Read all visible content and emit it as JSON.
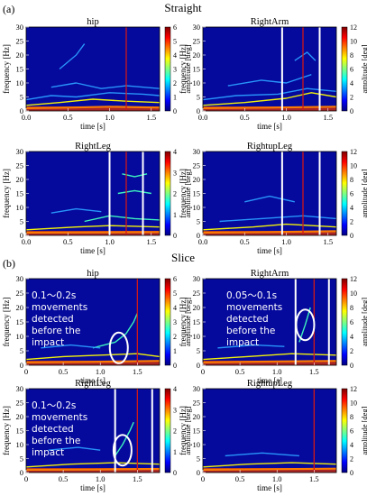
{
  "figure": {
    "part_a_label": "(a)",
    "part_a_title": "Straight",
    "part_b_label": "(b)",
    "part_b_title": "Slice"
  },
  "colors": {
    "background_field": "#05099c",
    "marker_line_red": "#d01818",
    "marker_line_white": "#ffffff",
    "colormap": [
      "#00007f",
      "#0000ff",
      "#0080ff",
      "#00ffff",
      "#80ff80",
      "#ffff00",
      "#ff8000",
      "#ff0000",
      "#7f0000"
    ]
  },
  "chart_data": [
    {
      "id": "a-hip",
      "type": "heatmap",
      "title": "hip",
      "xlabel": "time [s]",
      "ylabel": "frequency [Hz]",
      "colorbar_label": "amplitude [deg]",
      "xlim": [
        0,
        1.6
      ],
      "ylim": [
        0,
        30
      ],
      "clim": [
        0,
        6
      ],
      "x_ticks": [
        "0.0",
        "0.5",
        "1.0",
        "1.5"
      ],
      "y_ticks": [
        "0",
        "5",
        "10",
        "15",
        "20",
        "25",
        "30"
      ],
      "c_ticks": [
        "0",
        "1",
        "2",
        "3",
        "4",
        "5",
        "6"
      ],
      "red_lines_x": [
        1.2
      ],
      "white_lines_x": [],
      "annotation": null,
      "ridges": [
        {
          "a": 0.7,
          "pts": [
            [
              0,
              2.0
            ],
            [
              0.4,
              3.0
            ],
            [
              0.8,
              4.2
            ],
            [
              1.2,
              3.5
            ],
            [
              1.6,
              3.0
            ]
          ]
        },
        {
          "a": 0.45,
          "pts": [
            [
              0,
              4.0
            ],
            [
              0.3,
              5.5
            ],
            [
              0.6,
              5.0
            ],
            [
              1.0,
              6.5
            ],
            [
              1.4,
              6.0
            ],
            [
              1.6,
              5.5
            ]
          ]
        },
        {
          "a": 0.3,
          "pts": [
            [
              0.3,
              8.5
            ],
            [
              0.6,
              10.0
            ],
            [
              0.9,
              8.0
            ],
            [
              1.2,
              9.0
            ],
            [
              1.6,
              8.0
            ]
          ]
        },
        {
          "a": 0.25,
          "pts": [
            [
              0.4,
              15.0
            ],
            [
              0.6,
              20.0
            ],
            [
              0.7,
              24.0
            ]
          ]
        },
        {
          "a": 0.9,
          "pts": [
            [
              0,
              1.0
            ],
            [
              0.5,
              1.2
            ],
            [
              1.0,
              1.5
            ],
            [
              1.6,
              1.2
            ]
          ]
        }
      ]
    },
    {
      "id": "a-rightarm",
      "type": "heatmap",
      "title": "RightArm",
      "xlabel": "time [s]",
      "ylabel": "frequency [Hz]",
      "colorbar_label": "amplitude [deg]",
      "xlim": [
        0,
        1.6
      ],
      "ylim": [
        0,
        30
      ],
      "clim": [
        0,
        12
      ],
      "x_ticks": [
        "0.0",
        "0.5",
        "1.0",
        "1.5"
      ],
      "y_ticks": [
        "0",
        "5",
        "10",
        "15",
        "20",
        "25",
        "30"
      ],
      "c_ticks": [
        "0",
        "2",
        "4",
        "6",
        "8",
        "10",
        "12"
      ],
      "red_lines_x": [
        1.2
      ],
      "white_lines_x": [
        0.95,
        1.4
      ],
      "annotation": null,
      "ridges": [
        {
          "a": 0.75,
          "pts": [
            [
              0,
              2.0
            ],
            [
              0.5,
              3.0
            ],
            [
              1.0,
              4.5
            ],
            [
              1.3,
              6.5
            ],
            [
              1.6,
              5.0
            ]
          ]
        },
        {
          "a": 0.45,
          "pts": [
            [
              0,
              4.0
            ],
            [
              0.4,
              5.5
            ],
            [
              0.9,
              6.0
            ],
            [
              1.25,
              8.0
            ],
            [
              1.6,
              7.0
            ]
          ]
        },
        {
          "a": 0.3,
          "pts": [
            [
              0.3,
              9.0
            ],
            [
              0.7,
              11.0
            ],
            [
              1.0,
              10.0
            ],
            [
              1.3,
              13.0
            ]
          ]
        },
        {
          "a": 0.35,
          "pts": [
            [
              1.1,
              18.0
            ],
            [
              1.25,
              21.0
            ],
            [
              1.35,
              18.0
            ]
          ]
        },
        {
          "a": 0.9,
          "pts": [
            [
              0,
              1.0
            ],
            [
              0.8,
              1.2
            ],
            [
              1.6,
              1.5
            ]
          ]
        }
      ]
    },
    {
      "id": "a-rightleg",
      "type": "heatmap",
      "title": "RightLeg",
      "xlabel": "time [s]",
      "ylabel": "frequency [Hz]",
      "colorbar_label": "amplitude [deg]",
      "xlim": [
        0,
        1.6
      ],
      "ylim": [
        0,
        30
      ],
      "clim": [
        0,
        4
      ],
      "x_ticks": [
        "0.0",
        "0.5",
        "1.0",
        "1.5"
      ],
      "y_ticks": [
        "0",
        "5",
        "10",
        "15",
        "20",
        "25",
        "30"
      ],
      "c_ticks": [
        "0",
        "1",
        "2",
        "3",
        "4"
      ],
      "red_lines_x": [
        1.2
      ],
      "white_lines_x": [
        1.0,
        1.4
      ],
      "annotation": null,
      "ridges": [
        {
          "a": 0.7,
          "pts": [
            [
              0,
              2.0
            ],
            [
              0.6,
              3.0
            ],
            [
              1.0,
              3.5
            ],
            [
              1.6,
              3.0
            ]
          ]
        },
        {
          "a": 0.5,
          "pts": [
            [
              0.7,
              5.0
            ],
            [
              1.0,
              7.0
            ],
            [
              1.3,
              6.0
            ],
            [
              1.6,
              5.5
            ]
          ]
        },
        {
          "a": 0.55,
          "pts": [
            [
              1.1,
              15.0
            ],
            [
              1.3,
              16.0
            ],
            [
              1.5,
              15.0
            ]
          ]
        },
        {
          "a": 0.5,
          "pts": [
            [
              1.15,
              22.0
            ],
            [
              1.3,
              21.0
            ],
            [
              1.45,
              22.0
            ]
          ]
        },
        {
          "a": 0.3,
          "pts": [
            [
              0.3,
              8.0
            ],
            [
              0.6,
              9.5
            ],
            [
              0.9,
              8.5
            ]
          ]
        },
        {
          "a": 0.95,
          "pts": [
            [
              0,
              1.0
            ],
            [
              0.8,
              1.1
            ],
            [
              1.6,
              1.2
            ]
          ]
        }
      ]
    },
    {
      "id": "a-rightupleg",
      "type": "heatmap",
      "title": "RightupLeg",
      "xlabel": "time [s]",
      "ylabel": "frequency [Hz]",
      "colorbar_label": "amplitude [deg]",
      "xlim": [
        0,
        1.6
      ],
      "ylim": [
        0,
        30
      ],
      "clim": [
        0,
        12
      ],
      "x_ticks": [
        "0.0",
        "0.5",
        "1.0",
        "1.5"
      ],
      "y_ticks": [
        "0",
        "5",
        "10",
        "15",
        "20",
        "25",
        "30"
      ],
      "c_ticks": [
        "0",
        "2",
        "4",
        "6",
        "8",
        "10",
        "12"
      ],
      "red_lines_x": [
        1.2
      ],
      "white_lines_x": [
        0.95,
        1.4
      ],
      "annotation": null,
      "ridges": [
        {
          "a": 0.7,
          "pts": [
            [
              0,
              2.0
            ],
            [
              0.6,
              3.0
            ],
            [
              1.0,
              4.0
            ],
            [
              1.6,
              3.0
            ]
          ]
        },
        {
          "a": 0.45,
          "pts": [
            [
              0.2,
              5.0
            ],
            [
              0.7,
              6.0
            ],
            [
              1.2,
              7.0
            ],
            [
              1.6,
              6.0
            ]
          ]
        },
        {
          "a": 0.3,
          "pts": [
            [
              0.5,
              12.0
            ],
            [
              0.8,
              14.0
            ],
            [
              1.1,
              12.0
            ]
          ]
        },
        {
          "a": 0.9,
          "pts": [
            [
              0,
              1.0
            ],
            [
              0.8,
              1.2
            ],
            [
              1.6,
              1.5
            ]
          ]
        }
      ]
    },
    {
      "id": "b-hip",
      "type": "heatmap",
      "title": "hip",
      "xlabel": "time [s]",
      "ylabel": "frequency [Hz]",
      "colorbar_label": "amplitude [deg]",
      "xlim": [
        0,
        1.8
      ],
      "ylim": [
        0,
        30
      ],
      "clim": [
        0,
        6
      ],
      "x_ticks": [
        "0",
        "0.5",
        "1.0",
        "1.5"
      ],
      "y_ticks": [
        "0",
        "5",
        "10",
        "15",
        "20",
        "25",
        "30"
      ],
      "c_ticks": [
        "0",
        "1",
        "2",
        "3",
        "4",
        "5",
        "6"
      ],
      "red_lines_x": [
        1.5
      ],
      "white_lines_x": [],
      "annotation": {
        "text": [
          "0.1～0.2s",
          "movements",
          "detected",
          "before the",
          "impact"
        ],
        "ellipse_center": [
          1.25,
          6.0
        ]
      },
      "ridges": [
        {
          "a": 0.75,
          "pts": [
            [
              0,
              2.0
            ],
            [
              0.5,
              3.0
            ],
            [
              1.0,
              3.5
            ],
            [
              1.5,
              4.0
            ],
            [
              1.8,
              3.0
            ]
          ]
        },
        {
          "a": 0.5,
          "pts": [
            [
              0.9,
              6.0
            ],
            [
              1.2,
              8.0
            ],
            [
              1.35,
              11.0
            ],
            [
              1.45,
              15.0
            ],
            [
              1.5,
              18.0
            ]
          ]
        },
        {
          "a": 0.9,
          "pts": [
            [
              0,
              1.0
            ],
            [
              0.9,
              1.2
            ],
            [
              1.8,
              1.5
            ]
          ]
        },
        {
          "a": 0.3,
          "pts": [
            [
              0.2,
              6.0
            ],
            [
              0.6,
              7.0
            ],
            [
              1.0,
              6.0
            ]
          ]
        }
      ]
    },
    {
      "id": "b-rightarm",
      "type": "heatmap",
      "title": "RightArm",
      "xlabel": "time [s]",
      "ylabel": "frequency [Hz]",
      "colorbar_label": "amplitude [deg]",
      "xlim": [
        0,
        1.8
      ],
      "ylim": [
        0,
        30
      ],
      "clim": [
        0,
        12
      ],
      "x_ticks": [
        "0",
        "0.5",
        "1.0",
        "1.5"
      ],
      "y_ticks": [
        "0",
        "5",
        "10",
        "15",
        "20",
        "25",
        "30"
      ],
      "c_ticks": [
        "0",
        "2",
        "4",
        "6",
        "8",
        "10",
        "12"
      ],
      "red_lines_x": [
        1.5
      ],
      "white_lines_x": [
        1.25,
        1.7
      ],
      "annotation": {
        "text": [
          "0.05～0.1s",
          "movements",
          "detected",
          "before the",
          "impact"
        ],
        "ellipse_center": [
          1.38,
          14.0
        ]
      },
      "ridges": [
        {
          "a": 0.75,
          "pts": [
            [
              0,
              2.0
            ],
            [
              0.6,
              3.0
            ],
            [
              1.2,
              4.0
            ],
            [
              1.8,
              3.5
            ]
          ]
        },
        {
          "a": 0.55,
          "pts": [
            [
              1.3,
              8.0
            ],
            [
              1.38,
              14.0
            ],
            [
              1.45,
              20.0
            ]
          ]
        },
        {
          "a": 0.9,
          "pts": [
            [
              0,
              1.0
            ],
            [
              1.0,
              1.3
            ],
            [
              1.8,
              1.5
            ]
          ]
        },
        {
          "a": 0.3,
          "pts": [
            [
              0.2,
              6.0
            ],
            [
              0.7,
              7.0
            ],
            [
              1.1,
              6.5
            ]
          ]
        }
      ]
    },
    {
      "id": "b-rightleg",
      "type": "heatmap",
      "title": "RightLeg",
      "xlabel": "time [s]",
      "ylabel": "frequency [Hz]",
      "colorbar_label": "amplitude [deg]",
      "xlim": [
        0,
        1.8
      ],
      "ylim": [
        0,
        30
      ],
      "clim": [
        0,
        4
      ],
      "x_ticks": [
        "0",
        "0.5",
        "1.0",
        "1.5"
      ],
      "y_ticks": [
        "0",
        "5",
        "10",
        "15",
        "20",
        "25",
        "30"
      ],
      "c_ticks": [
        "0",
        "1",
        "2",
        "3",
        "4"
      ],
      "red_lines_x": [
        1.5
      ],
      "white_lines_x": [
        1.2,
        1.7
      ],
      "annotation": {
        "text": [
          "0.1～0.2s",
          "movements",
          "detected",
          "before the",
          "impact"
        ],
        "ellipse_center": [
          1.3,
          8.0
        ]
      },
      "ridges": [
        {
          "a": 0.75,
          "pts": [
            [
              0,
              2.0
            ],
            [
              0.6,
              3.0
            ],
            [
              1.2,
              3.5
            ],
            [
              1.8,
              3.0
            ]
          ]
        },
        {
          "a": 0.55,
          "pts": [
            [
              1.2,
              6.0
            ],
            [
              1.3,
              10.0
            ],
            [
              1.4,
              15.0
            ],
            [
              1.45,
              18.0
            ]
          ]
        },
        {
          "a": 0.9,
          "pts": [
            [
              0,
              1.0
            ],
            [
              0.9,
              1.1
            ],
            [
              1.8,
              1.3
            ]
          ]
        },
        {
          "a": 0.3,
          "pts": [
            [
              0.3,
              8.0
            ],
            [
              0.7,
              9.0
            ],
            [
              1.0,
              8.0
            ]
          ]
        }
      ]
    },
    {
      "id": "b-rightupleg",
      "type": "heatmap",
      "title": "RightupLeg",
      "xlabel": "time [s]",
      "ylabel": "frequency [Hz]",
      "colorbar_label": "amplitude [deg]",
      "xlim": [
        0,
        1.8
      ],
      "ylim": [
        0,
        30
      ],
      "clim": [
        0,
        12
      ],
      "x_ticks": [
        "0",
        "0.5",
        "1.0",
        "1.5"
      ],
      "y_ticks": [
        "0",
        "5",
        "10",
        "15",
        "20",
        "25",
        "30"
      ],
      "c_ticks": [
        "0",
        "2",
        "4",
        "6",
        "8",
        "10",
        "12"
      ],
      "red_lines_x": [
        1.5
      ],
      "white_lines_x": [],
      "annotation": null,
      "ridges": [
        {
          "a": 0.7,
          "pts": [
            [
              0,
              2.0
            ],
            [
              0.6,
              3.0
            ],
            [
              1.2,
              3.5
            ],
            [
              1.8,
              3.0
            ]
          ]
        },
        {
          "a": 0.4,
          "pts": [
            [
              0.3,
              6.0
            ],
            [
              0.8,
              7.0
            ],
            [
              1.3,
              6.0
            ]
          ]
        },
        {
          "a": 0.9,
          "pts": [
            [
              0,
              1.0
            ],
            [
              0.9,
              1.2
            ],
            [
              1.8,
              1.4
            ]
          ]
        }
      ]
    }
  ]
}
